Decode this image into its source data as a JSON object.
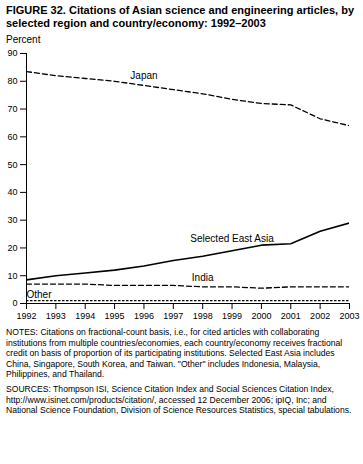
{
  "chart_data": {
    "type": "line",
    "title": "FIGURE 32. Citations of Asian science and engineering articles, by selected region and country/economy: 1992–2003",
    "y_label": "Percent",
    "x": [
      1992,
      1993,
      1994,
      1995,
      1996,
      1997,
      1998,
      1999,
      2000,
      2001,
      2002,
      2003
    ],
    "series": [
      {
        "name": "Japan",
        "color": "#000000",
        "line_style": "dashed",
        "values": [
          83.5,
          82,
          81,
          80,
          78.5,
          77,
          75.5,
          73.5,
          72,
          71.5,
          66.5,
          64
        ]
      },
      {
        "name": "Selected East Asia",
        "color": "#000000",
        "line_style": "solid",
        "values": [
          8.5,
          10,
          11,
          12,
          13.5,
          15.5,
          17,
          19,
          21,
          21.5,
          26,
          29
        ]
      },
      {
        "name": "India",
        "color": "#000000",
        "line_style": "dashed",
        "values": [
          7,
          7,
          7,
          6.5,
          6.5,
          6.5,
          6,
          6,
          5.5,
          6,
          6,
          6
        ]
      },
      {
        "name": "Other",
        "color": "#000000",
        "line_style": "dotted",
        "values": [
          1,
          1,
          1,
          1,
          1,
          1,
          1,
          1,
          1,
          1,
          1,
          1
        ]
      }
    ],
    "xlim": [
      1992,
      2003
    ],
    "xticks": [
      1992,
      1993,
      1994,
      1995,
      1996,
      1997,
      1998,
      1999,
      2000,
      2001,
      2002,
      2003
    ],
    "ylim": [
      0,
      90
    ],
    "yticks": [
      0,
      10,
      20,
      30,
      40,
      50,
      60,
      70,
      80,
      90
    ],
    "grid": false,
    "notes": "NOTES: Citations on fractional-count basis, i.e., for cited articles with collaborating institutions from multiple countries/economies, each country/economy receives fractional credit on basis of proportion of its participating institutions. Selected East Asia includes China, Singapore, South Korea, and Taiwan. \"Other\" includes Indonesia, Malaysia, Philippines, and Thailand.",
    "sources": "SOURCES: Thompson ISI, Science Citation Index and Social Sciences Citation Index, http://www.isinet.com/products/citation/, accessed 12 December 2006; ipIQ, Inc; and National Science Foundation, Division of Science Resources Statistics, special tabulations."
  }
}
